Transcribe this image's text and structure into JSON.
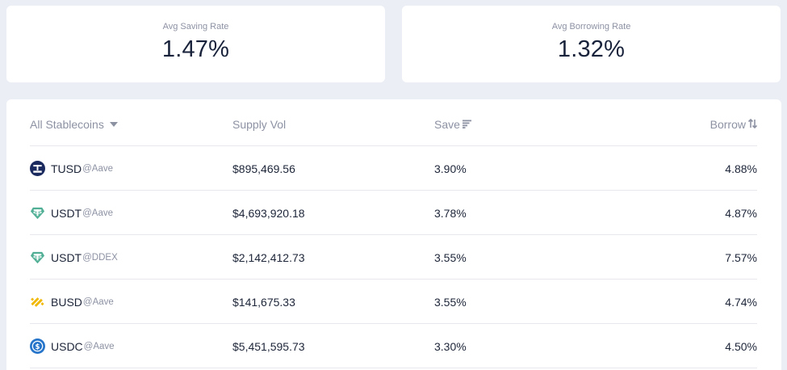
{
  "stats": {
    "saving": {
      "label": "Avg Saving Rate",
      "value": "1.47%"
    },
    "borrowing": {
      "label": "Avg Borrowing Rate",
      "value": "1.32%"
    }
  },
  "table": {
    "headers": {
      "coin": "All Stablecoins",
      "supply": "Supply Vol",
      "save": "Save",
      "borrow": "Borrow"
    },
    "rows": [
      {
        "icon": "tusd-icon",
        "coin": "TUSD",
        "source": "@Aave",
        "supply": "$895,469.56",
        "save": "3.90%",
        "borrow": "4.88%"
      },
      {
        "icon": "usdt-icon",
        "coin": "USDT",
        "source": "@Aave",
        "supply": "$4,693,920.18",
        "save": "3.78%",
        "borrow": "4.87%"
      },
      {
        "icon": "usdt-icon",
        "coin": "USDT",
        "source": "@DDEX",
        "supply": "$2,142,412.73",
        "save": "3.55%",
        "borrow": "7.57%"
      },
      {
        "icon": "busd-icon",
        "coin": "BUSD",
        "source": "@Aave",
        "supply": "$141,675.33",
        "save": "3.55%",
        "borrow": "4.74%"
      },
      {
        "icon": "usdc-icon",
        "coin": "USDC",
        "source": "@Aave",
        "supply": "$5,451,595.73",
        "save": "3.30%",
        "borrow": "4.50%"
      }
    ]
  },
  "colors": {
    "background": "#eceef6",
    "card": "#ffffff",
    "tusd": "#1a2a5e",
    "usdt": "#50af95",
    "busd": "#f0b90b",
    "usdc": "#2775ca"
  }
}
